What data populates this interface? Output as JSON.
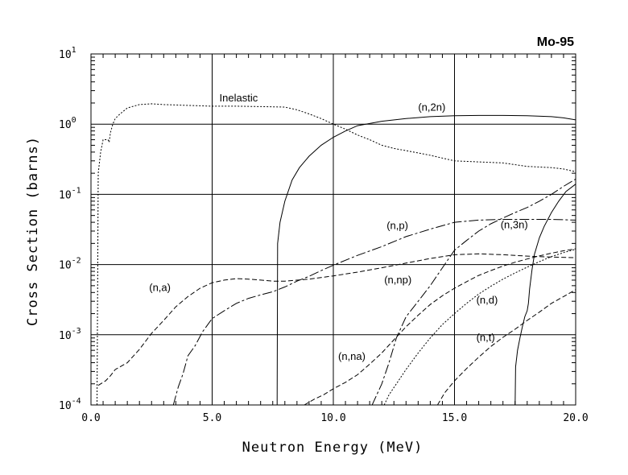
{
  "chart_data": {
    "type": "line",
    "title": "Mo-95",
    "xlabel": "Neutron Energy (MeV)",
    "ylabel": "Cross Section (barns)",
    "xlim": [
      0,
      20
    ],
    "ylim": [
      0.0001,
      10
    ],
    "yscale": "log",
    "grid": true,
    "xticks": [
      {
        "value": 0,
        "label": "0.0"
      },
      {
        "value": 5,
        "label": "5.0"
      },
      {
        "value": 10,
        "label": "10.0"
      },
      {
        "value": 15,
        "label": "15.0"
      },
      {
        "value": 20,
        "label": "20.0"
      }
    ],
    "yticks": [
      {
        "value": 0.0001,
        "base": "10",
        "exp": "-4"
      },
      {
        "value": 0.001,
        "base": "10",
        "exp": "-3"
      },
      {
        "value": 0.01,
        "base": "10",
        "exp": "-2"
      },
      {
        "value": 0.1,
        "base": "10",
        "exp": "-1"
      },
      {
        "value": 1,
        "base": "10",
        "exp": "0"
      },
      {
        "value": 10,
        "base": "10",
        "exp": "1"
      }
    ],
    "series": [
      {
        "name": "Inelastic",
        "label": "Inelastic",
        "dash": "2,2",
        "x": [
          0.25,
          0.3,
          0.4,
          0.5,
          0.6,
          0.7,
          0.75,
          0.8,
          0.9,
          1.0,
          1.2,
          1.5,
          2.0,
          2.5,
          3.0,
          4.0,
          5.0,
          6.0,
          7.0,
          8.0,
          8.5,
          9.0,
          9.5,
          10.0,
          10.5,
          11.0,
          11.5,
          12.0,
          12.5,
          13.0,
          14.0,
          15.0,
          16.0,
          17.0,
          18.0,
          19.0,
          19.5,
          20.0
        ],
        "y": [
          0.0001,
          0.2,
          0.4,
          0.6,
          0.6,
          0.6,
          0.55,
          0.75,
          1.0,
          1.2,
          1.4,
          1.7,
          1.9,
          1.95,
          1.9,
          1.85,
          1.8,
          1.8,
          1.78,
          1.75,
          1.6,
          1.4,
          1.2,
          1.0,
          0.85,
          0.7,
          0.6,
          0.5,
          0.45,
          0.42,
          0.36,
          0.3,
          0.29,
          0.28,
          0.25,
          0.24,
          0.23,
          0.21
        ],
        "label_x": 5.3,
        "label_y": 2.1
      },
      {
        "name": "(n,2n)",
        "label": "(n,2n)",
        "dash": "",
        "x": [
          7.68,
          7.7,
          7.8,
          8.0,
          8.3,
          8.6,
          9.0,
          9.5,
          10.0,
          10.5,
          11.0,
          12.0,
          13.0,
          14.0,
          15.0,
          16.0,
          17.0,
          18.0,
          19.0,
          19.5,
          20.0
        ],
        "y": [
          0.0001,
          0.02,
          0.04,
          0.08,
          0.16,
          0.24,
          0.35,
          0.5,
          0.65,
          0.8,
          0.95,
          1.1,
          1.2,
          1.28,
          1.32,
          1.33,
          1.33,
          1.32,
          1.28,
          1.23,
          1.15
        ],
        "label_x": 13.5,
        "label_y": 1.55
      },
      {
        "name": "(n,p)",
        "label": "(n,p)",
        "dash": "12,3,3,3",
        "x": [
          3.4,
          3.6,
          3.8,
          4.0,
          4.3,
          4.6,
          5.0,
          5.5,
          6.0,
          6.5,
          7.0,
          7.5,
          8.0,
          8.5,
          9.0,
          9.5,
          10.0,
          11.0,
          12.0,
          13.0,
          14.0,
          15.0,
          16.0,
          17.0,
          18.0,
          19.0,
          20.0
        ],
        "y": [
          0.0001,
          0.00018,
          0.00028,
          0.0005,
          0.0007,
          0.0011,
          0.0017,
          0.0022,
          0.0028,
          0.0033,
          0.0037,
          0.0041,
          0.0048,
          0.0058,
          0.0068,
          0.0082,
          0.0098,
          0.0135,
          0.018,
          0.025,
          0.032,
          0.04,
          0.043,
          0.044,
          0.044,
          0.044,
          0.043
        ],
        "label_x": 12.2,
        "label_y": 0.032
      },
      {
        "name": "(n,a)",
        "label": "(n,a)",
        "dash": "6,3",
        "x": [
          0.3,
          0.4,
          0.6,
          0.8,
          1.0,
          1.5,
          2.0,
          2.5,
          3.0,
          3.5,
          4.0,
          4.5,
          5.0,
          5.5,
          6.0,
          6.5,
          7.0,
          7.5,
          8.0,
          9.0,
          10.0,
          11.0,
          12.0,
          13.0,
          14.0,
          15.0,
          16.0,
          17.0,
          18.0,
          19.0,
          20.0
        ],
        "y": [
          0.00019,
          0.0002,
          0.00022,
          0.00026,
          0.00032,
          0.0004,
          0.00062,
          0.00105,
          0.0016,
          0.0025,
          0.0035,
          0.0046,
          0.0055,
          0.006,
          0.0063,
          0.0062,
          0.006,
          0.0058,
          0.0058,
          0.0062,
          0.0069,
          0.0078,
          0.009,
          0.0105,
          0.0122,
          0.0138,
          0.0142,
          0.0138,
          0.0132,
          0.0128,
          0.0125
        ],
        "label_x": 2.4,
        "label_y": 0.0042
      },
      {
        "name": "(n,np)",
        "label": "(n,np)",
        "dash": "12,3,3,3",
        "x": [
          11.6,
          12.0,
          12.3,
          12.6,
          13.0,
          13.5,
          14.0,
          14.5,
          15.0,
          15.5,
          16.0,
          16.5,
          17.0,
          17.5,
          18.0,
          18.5,
          19.0,
          19.5,
          20.0
        ],
        "y": [
          0.0001,
          0.0002,
          0.0004,
          0.0009,
          0.0018,
          0.003,
          0.005,
          0.009,
          0.016,
          0.022,
          0.03,
          0.038,
          0.046,
          0.055,
          0.065,
          0.08,
          0.1,
          0.13,
          0.165
        ],
        "label_x": 12.1,
        "label_y": 0.0054
      },
      {
        "name": "(n,na)",
        "label": "(n,na)",
        "dash": "6,3",
        "x": [
          8.8,
          9.2,
          9.6,
          10.0,
          10.5,
          11.0,
          11.5,
          12.0,
          12.5,
          13.0,
          13.5,
          14.0,
          14.5,
          15.0,
          15.5,
          16.0,
          16.5,
          17.0,
          17.5,
          18.0,
          18.5,
          19.0,
          19.5,
          20.0
        ],
        "y": [
          0.0001,
          0.00012,
          0.00014,
          0.00017,
          0.00021,
          0.00027,
          0.00038,
          0.00055,
          0.00085,
          0.0013,
          0.0019,
          0.0027,
          0.0036,
          0.0046,
          0.0057,
          0.007,
          0.0082,
          0.0095,
          0.0108,
          0.012,
          0.0133,
          0.0145,
          0.0157,
          0.0168
        ],
        "label_x": 10.2,
        "label_y": 0.00044
      },
      {
        "name": "(n,d)",
        "label": "(n,d)",
        "dash": "2,2",
        "x": [
          12.1,
          12.3,
          12.6,
          13.0,
          13.5,
          14.0,
          14.5,
          15.0,
          15.5,
          16.0,
          16.5,
          17.0,
          17.5,
          18.0,
          18.5,
          19.0,
          19.5,
          20.0
        ],
        "y": [
          0.0001,
          0.00014,
          0.0002,
          0.00032,
          0.00055,
          0.0009,
          0.0014,
          0.002,
          0.0028,
          0.0038,
          0.0049,
          0.0062,
          0.0076,
          0.0092,
          0.011,
          0.013,
          0.0148,
          0.0165
        ],
        "label_x": 15.9,
        "label_y": 0.0028
      },
      {
        "name": "(n,3n)",
        "label": "(n,3n)",
        "dash": "",
        "x": [
          17.5,
          17.52,
          17.6,
          17.7,
          17.8,
          17.9,
          18.0,
          18.05,
          18.1,
          18.2,
          18.3,
          18.5,
          18.7,
          19.0,
          19.3,
          19.6,
          20.0
        ],
        "y": [
          0.0001,
          0.00035,
          0.0006,
          0.0009,
          0.0013,
          0.0018,
          0.0022,
          0.0028,
          0.0045,
          0.0085,
          0.014,
          0.024,
          0.035,
          0.055,
          0.08,
          0.11,
          0.14
        ],
        "label_x": 16.9,
        "label_y": 0.033
      },
      {
        "name": "(n,t)",
        "label": "(n,t)",
        "dash": "6,3",
        "x": [
          14.3,
          14.6,
          15.0,
          15.5,
          16.0,
          16.5,
          17.0,
          17.5,
          18.0,
          18.5,
          19.0,
          19.5,
          20.0
        ],
        "y": [
          0.0001,
          0.00015,
          0.00022,
          0.00033,
          0.00048,
          0.00068,
          0.00092,
          0.0012,
          0.0016,
          0.0021,
          0.0028,
          0.0035,
          0.0044
        ],
        "label_x": 15.9,
        "label_y": 0.00082
      }
    ]
  }
}
